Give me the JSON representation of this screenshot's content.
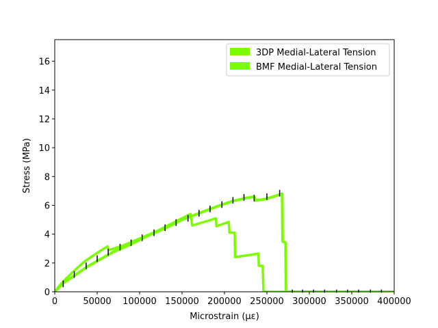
{
  "chart_data": {
    "type": "line",
    "title": "",
    "xlabel": "Microstrain (με)",
    "ylabel": "Stress (MPa)",
    "xlim": [
      0,
      400000
    ],
    "ylim": [
      0,
      17.5
    ],
    "xticks": [
      0,
      50000,
      100000,
      150000,
      200000,
      250000,
      300000,
      350000,
      400000
    ],
    "xtick_labels": [
      "0",
      "50000",
      "100000",
      "150000",
      "200000",
      "250000",
      "300000",
      "350000",
      "400000"
    ],
    "yticks": [
      0,
      2,
      4,
      6,
      8,
      10,
      12,
      14,
      16
    ],
    "ytick_labels": [
      "0",
      "2",
      "4",
      "6",
      "8",
      "10",
      "12",
      "14",
      "16"
    ],
    "grid": false,
    "legend_position": "top-right",
    "colors": {
      "series": "#7cfc00",
      "error_bars": "#000000"
    },
    "series": [
      {
        "name": "3DP Medial-Lateral Tension",
        "x": [
          0,
          8000,
          20000,
          35000,
          50000,
          62000,
          64000,
          80000,
          100000,
          120000,
          140000,
          160000,
          162000,
          190000,
          190500,
          205000,
          206000,
          212000,
          212500,
          240000,
          240500,
          245000,
          246000,
          400000
        ],
        "y": [
          0,
          0.6,
          1.3,
          2.1,
          2.7,
          3.15,
          2.9,
          3.2,
          3.7,
          4.2,
          4.8,
          5.4,
          4.6,
          5.1,
          4.55,
          4.85,
          4.1,
          4.1,
          2.4,
          2.65,
          1.8,
          1.8,
          0,
          0
        ]
      },
      {
        "name": "BMF Medial-Lateral Tension",
        "x": [
          0,
          10000,
          25000,
          40000,
          55000,
          70000,
          90000,
          110000,
          130000,
          150000,
          170000,
          190000,
          210000,
          225000,
          235000,
          237000,
          245000,
          255000,
          268000,
          268500,
          272000,
          272500,
          400000
        ],
        "y": [
          0,
          0.6,
          1.2,
          1.8,
          2.3,
          2.8,
          3.3,
          3.9,
          4.4,
          5.0,
          5.45,
          5.9,
          6.3,
          6.5,
          6.6,
          6.35,
          6.4,
          6.55,
          6.8,
          3.5,
          3.4,
          0,
          0
        ]
      }
    ],
    "error_bars": {
      "x": [
        10000,
        23000,
        37000,
        50000,
        63000,
        77000,
        90000,
        103000,
        117000,
        130000,
        143000,
        157000,
        170000,
        183000,
        197000,
        210000,
        223000,
        235000,
        250000,
        265000,
        280000,
        292000,
        305000,
        318000,
        332000,
        345000,
        358000,
        372000,
        385000
      ],
      "y": [
        0.5,
        1.15,
        1.75,
        2.25,
        2.7,
        3.05,
        3.35,
        3.7,
        4.05,
        4.4,
        4.75,
        5.05,
        5.4,
        5.7,
        6.0,
        6.3,
        6.5,
        6.45,
        6.55,
        6.8,
        0,
        0,
        0,
        0,
        0,
        0,
        0,
        0,
        0
      ],
      "err": [
        0.18,
        0.18,
        0.18,
        0.18,
        0.18,
        0.18,
        0.18,
        0.18,
        0.18,
        0.18,
        0.18,
        0.18,
        0.18,
        0.18,
        0.18,
        0.18,
        0.18,
        0.18,
        0.18,
        0.18,
        0.06,
        0.06,
        0.06,
        0.06,
        0.06,
        0.06,
        0.06,
        0.06,
        0.06
      ]
    }
  }
}
